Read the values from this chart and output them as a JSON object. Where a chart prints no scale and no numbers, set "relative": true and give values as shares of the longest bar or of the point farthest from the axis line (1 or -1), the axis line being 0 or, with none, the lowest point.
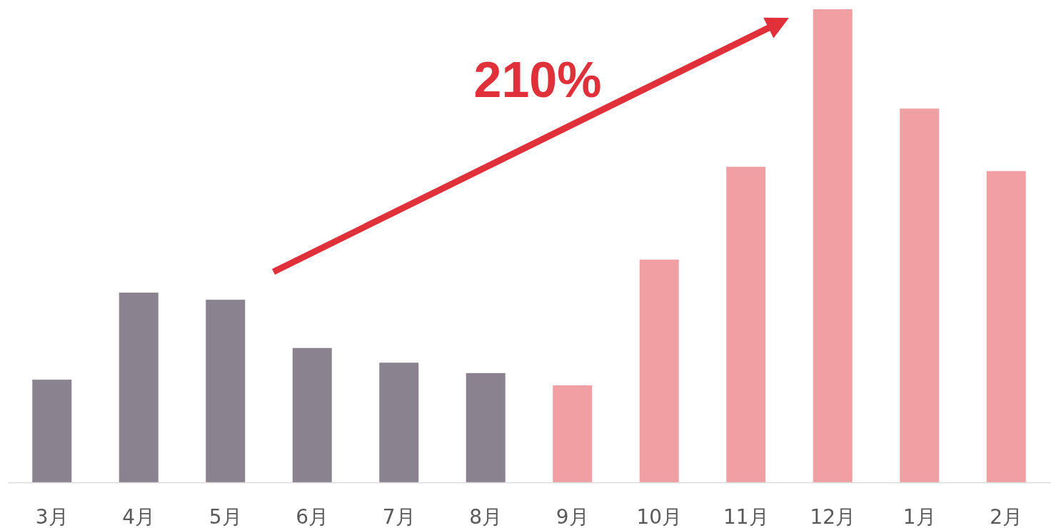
{
  "chart_data": {
    "type": "bar",
    "relative": true,
    "categories": [
      "3月",
      "4月",
      "5月",
      "6月",
      "7月",
      "8月",
      "9月",
      "10月",
      "11月",
      "12月",
      "1月",
      "2月"
    ],
    "values": [
      0.217,
      0.401,
      0.386,
      0.284,
      0.253,
      0.231,
      0.205,
      0.471,
      0.667,
      1,
      0.79,
      0.658
    ],
    "colors": [
      "#8a828e",
      "#8a828e",
      "#8a828e",
      "#8a828e",
      "#8a828e",
      "#8a828e",
      "#f0a0a3",
      "#f0a0a3",
      "#f0a0a3",
      "#f0a0a3",
      "#f0a0a3",
      "#f0a0a3"
    ],
    "annotations": [
      "210%"
    ]
  }
}
